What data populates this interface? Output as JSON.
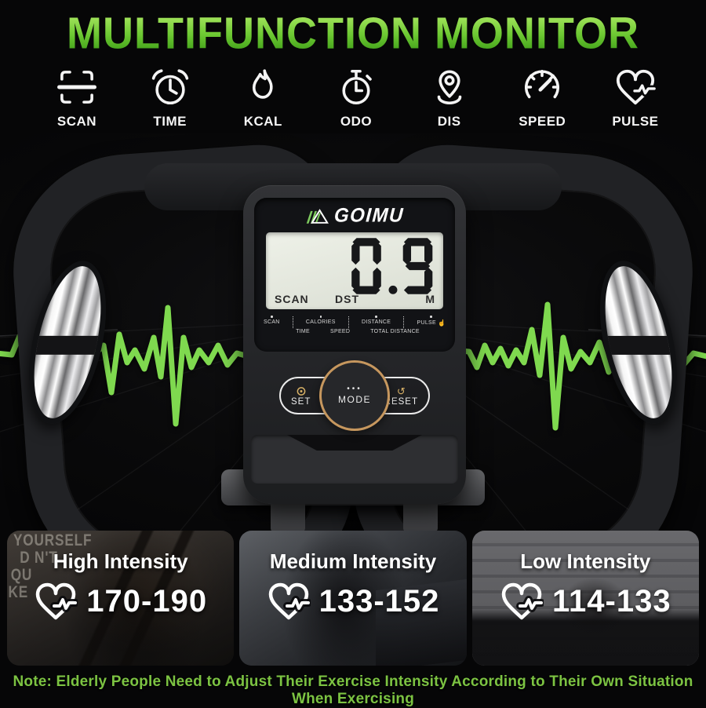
{
  "page": {
    "title": "MULTIFUNCTION MONITOR",
    "note": "Note: Elderly People Need to Adjust Their Exercise Intensity According to Their Own Situation When Exercising"
  },
  "features": [
    {
      "icon": "scan-icon",
      "label": "SCAN"
    },
    {
      "icon": "alarm-clock-icon",
      "label": "TIME"
    },
    {
      "icon": "flame-icon",
      "label": "KCAL"
    },
    {
      "icon": "stopwatch-icon",
      "label": "ODO"
    },
    {
      "icon": "location-pin-icon",
      "label": "DIS"
    },
    {
      "icon": "speedometer-icon",
      "label": "SPEED"
    },
    {
      "icon": "heart-pulse-icon",
      "label": "PULSE"
    }
  ],
  "monitor": {
    "brand": "GOIMU",
    "lcd": {
      "value": "0.9",
      "mode": "SCAN",
      "metric": "DST",
      "unit": "M"
    },
    "mode_labels_top": [
      "SCAN",
      "CALORIES",
      "DISTANCE",
      "PULSE"
    ],
    "mode_labels_bottom": [
      "TIME",
      "SPEED",
      "TOTAL DISTANCE"
    ],
    "buttons": {
      "set": "SET",
      "mode": "MODE",
      "reset": "RESET",
      "mode_dots": "•••"
    }
  },
  "icons": {
    "hand": "☝",
    "reset_arrow": "↺"
  },
  "intensity_panels": [
    {
      "title": "High Intensity",
      "heart_rate_range": "170-190"
    },
    {
      "title": "Medium Intensity",
      "heart_rate_range": "133-152"
    },
    {
      "title": "Low Intensity",
      "heart_rate_range": "114-133"
    }
  ],
  "background_poster_words": [
    "YOURSELF",
    "D N'T",
    "QU",
    "KE"
  ],
  "colors": {
    "accent_green": "#7fd94f",
    "title_green_light": "#b9ef6d",
    "title_green_dark": "#2f8f10",
    "note_green": "#7cc342",
    "mode_ring_gold": "#c6975e",
    "button_icon_gold": "#d9b267",
    "lcd_background": "#e3e7dc"
  }
}
